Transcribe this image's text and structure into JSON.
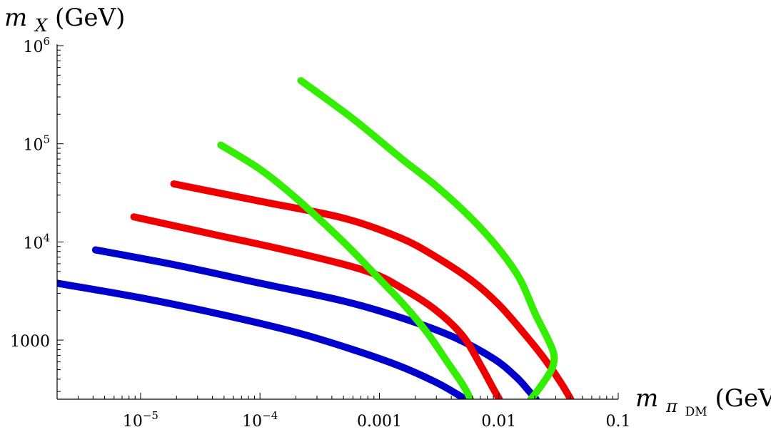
{
  "chart_data": {
    "type": "line",
    "title": "",
    "xlabel": {
      "main": "m",
      "sub": "π",
      "subsub": "DM",
      "unit": "(GeV)"
    },
    "ylabel": {
      "main": "m",
      "sub": "X",
      "unit": "(GeV)"
    },
    "xscale": "log",
    "yscale": "log",
    "xlim": [
      2e-06,
      0.1
    ],
    "ylim": [
      250,
      1000000
    ],
    "x_ticks": [
      {
        "value": 1e-05,
        "base": "10",
        "exp": "−5"
      },
      {
        "value": 0.0001,
        "base": "10",
        "exp": "−4"
      },
      {
        "value": 0.001,
        "label": "0.001"
      },
      {
        "value": 0.01,
        "label": "0.01"
      },
      {
        "value": 0.1,
        "label": "0.1"
      }
    ],
    "y_ticks": [
      {
        "value": 1000,
        "label": "1000"
      },
      {
        "value": 10000,
        "base": "10",
        "exp": "4"
      },
      {
        "value": 100000,
        "base": "10",
        "exp": "5"
      },
      {
        "value": 1000000,
        "base": "10",
        "exp": "6"
      }
    ],
    "grid": false,
    "legend": "none",
    "series": [
      {
        "color": "#0000cc",
        "points": [
          [
            2e-06,
            3800
          ],
          [
            1e-05,
            2700
          ],
          [
            5e-05,
            1800
          ],
          [
            0.0002,
            1200
          ],
          [
            0.0006,
            800
          ],
          [
            0.0015,
            540
          ],
          [
            0.003,
            370
          ],
          [
            0.0045,
            280
          ],
          [
            0.0052,
            250
          ]
        ]
      },
      {
        "color": "#0000cc",
        "points": [
          [
            4.2e-06,
            8300
          ],
          [
            2e-05,
            5800
          ],
          [
            0.0001,
            3800
          ],
          [
            0.0005,
            2500
          ],
          [
            0.0015,
            1700
          ],
          [
            0.004,
            1100
          ],
          [
            0.009,
            650
          ],
          [
            0.014,
            420
          ],
          [
            0.018,
            300
          ],
          [
            0.0205,
            250
          ]
        ]
      },
      {
        "color": "#ee0000",
        "points": [
          [
            8.8e-06,
            18000
          ],
          [
            4e-05,
            12000
          ],
          [
            0.0002,
            7800
          ],
          [
            0.0008,
            5000
          ],
          [
            0.0016,
            3300
          ],
          [
            0.003,
            2000
          ],
          [
            0.005,
            1100
          ],
          [
            0.007,
            560
          ],
          [
            0.009,
            320
          ],
          [
            0.0101,
            250
          ]
        ]
      },
      {
        "color": "#ee0000",
        "points": [
          [
            1.9e-05,
            39000
          ],
          [
            0.0001,
            26000
          ],
          [
            0.0005,
            17500
          ],
          [
            0.0015,
            11000
          ],
          [
            0.003,
            7000
          ],
          [
            0.006,
            4000
          ],
          [
            0.01,
            2300
          ],
          [
            0.016,
            1200
          ],
          [
            0.024,
            650
          ],
          [
            0.033,
            370
          ],
          [
            0.04,
            250
          ]
        ]
      },
      {
        "color": "#33ee00",
        "points": [
          [
            4.7e-05,
            97000
          ],
          [
            0.0001,
            55000
          ],
          [
            0.0002,
            28000
          ],
          [
            0.0005,
            10000
          ],
          [
            0.001,
            4200
          ],
          [
            0.0016,
            2300
          ],
          [
            0.0025,
            1200
          ],
          [
            0.0037,
            600
          ],
          [
            0.005,
            350
          ],
          [
            0.0058,
            250
          ]
        ]
      },
      {
        "color": "#33ee00",
        "points": [
          [
            0.00022,
            440000
          ],
          [
            0.0006,
            180000
          ],
          [
            0.0015,
            72000
          ],
          [
            0.003,
            37000
          ],
          [
            0.006,
            17000
          ],
          [
            0.01,
            8500
          ],
          [
            0.015,
            4200
          ],
          [
            0.02,
            1900
          ],
          [
            0.026,
            1000
          ],
          [
            0.029,
            700
          ],
          [
            0.028,
            520
          ],
          [
            0.024,
            380
          ],
          [
            0.02,
            280
          ],
          [
            0.0185,
            250
          ]
        ]
      }
    ]
  }
}
